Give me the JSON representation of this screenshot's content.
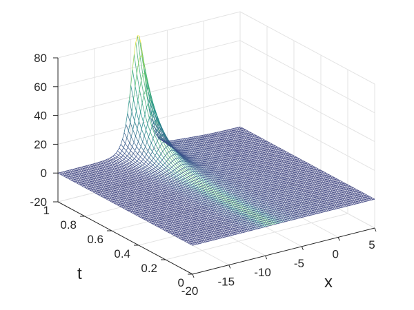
{
  "chart_data": {
    "type": "surface",
    "title": "",
    "xlabel": "x",
    "ylabel": "t",
    "zlabel": "",
    "xlim": [
      -20,
      5
    ],
    "ylim": [
      0,
      1
    ],
    "zlim": [
      -20,
      80
    ],
    "x_ticks": [
      "-20",
      "-15",
      "-10",
      "-5",
      "0",
      "5"
    ],
    "y_ticks": [
      "0",
      "0.2",
      "0.4",
      "0.6",
      "0.8",
      "1"
    ],
    "z_ticks": [
      "-20",
      "0",
      "20",
      "40",
      "60",
      "80"
    ],
    "grid": true,
    "colormap": [
      "#440154",
      "#3b528b",
      "#21918c",
      "#5ec962",
      "#fde725"
    ],
    "surface": {
      "baseline_value": 0,
      "peak_value": 80,
      "peak_x_range": [
        -12,
        -7
      ],
      "peak_t_at": 1,
      "description_points": [
        {
          "x": -9,
          "t": 1.0,
          "z": 80
        },
        {
          "x": -9,
          "t": 0.9,
          "z": 45
        },
        {
          "x": -9,
          "t": 0.8,
          "z": 20
        },
        {
          "x": -9,
          "t": 0.6,
          "z": 5
        },
        {
          "x": -9,
          "t": 0.3,
          "z": 1
        },
        {
          "x": -9,
          "t": 0.0,
          "z": 0
        }
      ]
    }
  }
}
